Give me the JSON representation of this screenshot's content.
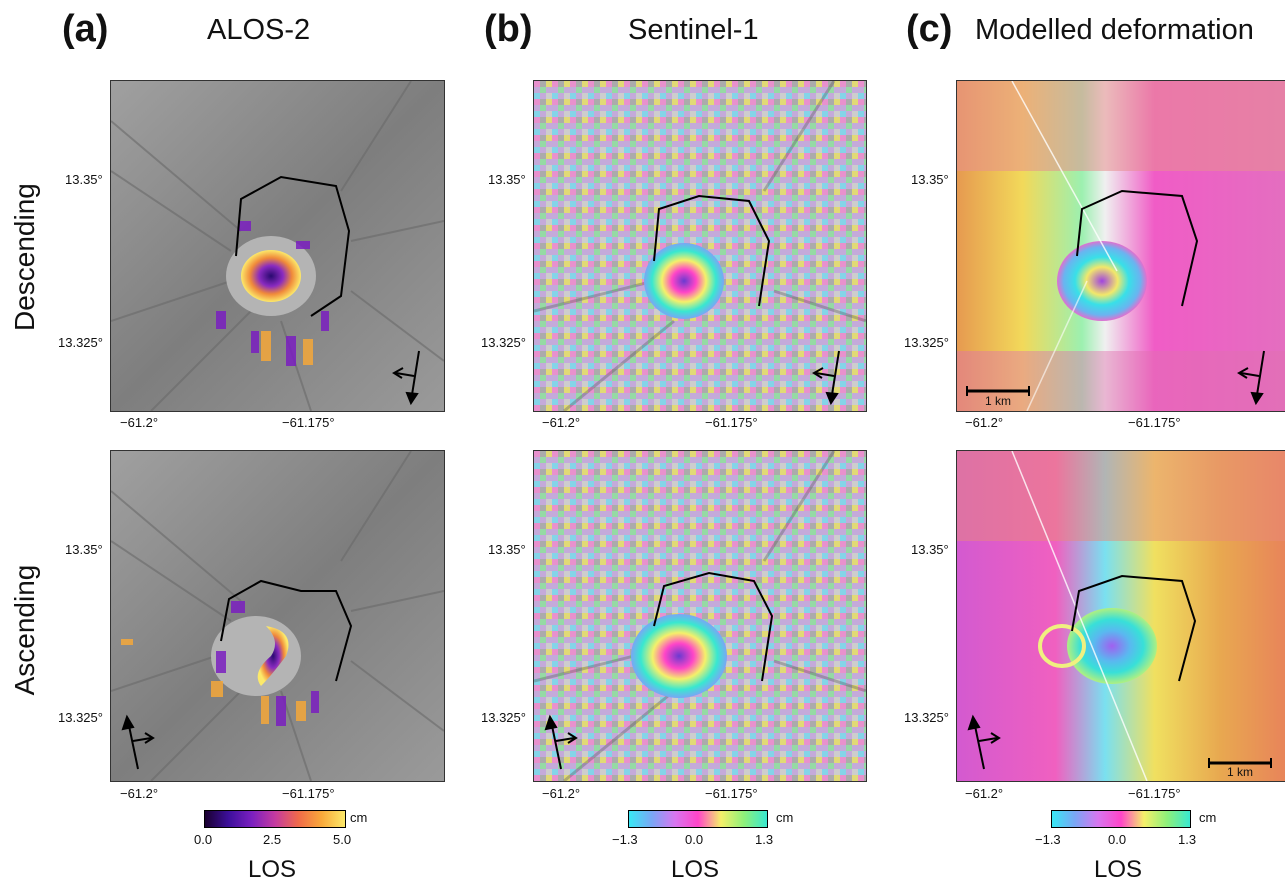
{
  "columns": [
    {
      "letter": "(a)",
      "title": "ALOS-2",
      "colorbar_ticks": [
        "0.0",
        "2.5",
        "5.0"
      ],
      "unit": "cm",
      "colorbar_label": "LOS",
      "colormap": [
        "#1a0030",
        "#3c0f9a",
        "#7a1fc0",
        "#c43aa0",
        "#f06a4a",
        "#f9a93a",
        "#fce96a"
      ]
    },
    {
      "letter": "(b)",
      "title": "Sentinel-1",
      "colorbar_ticks": [
        "−1.3",
        "0.0",
        "1.3"
      ],
      "unit": "cm",
      "colorbar_label": "LOS",
      "colormap": [
        "#38e8f5",
        "#7aa6f5",
        "#d776f0",
        "#ff45c8",
        "#f5f06a",
        "#8ef07a",
        "#38e8d0"
      ]
    },
    {
      "letter": "(c)",
      "title": "Modelled deformation",
      "colorbar_ticks": [
        "−1.3",
        "0.0",
        "1.3"
      ],
      "unit": "cm",
      "colorbar_label": "LOS",
      "colormap": [
        "#38e8f5",
        "#7aa6f5",
        "#d776f0",
        "#ff45c8",
        "#f5f06a",
        "#8ef07a",
        "#38e8d0"
      ]
    }
  ],
  "rows": [
    {
      "label": "Descending"
    },
    {
      "label": "Ascending"
    }
  ],
  "axes": {
    "lat_ticks": [
      "13.35°",
      "13.325°"
    ],
    "lon_ticks": [
      "−61.2°",
      "−61.175°"
    ]
  },
  "scale_bar": {
    "label": "1 km"
  },
  "colors": {
    "alos_base": "#8a8a8a",
    "model_base_desc": "#e86aa6",
    "model_base_asc": "#e8746a",
    "crater_rim": "#000000"
  }
}
